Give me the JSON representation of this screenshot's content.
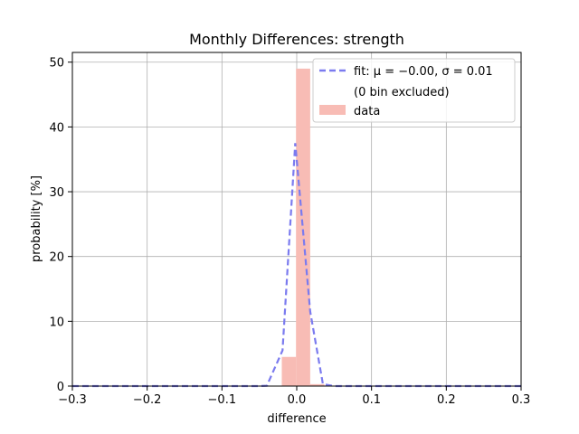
{
  "chart_data": {
    "type": "bar",
    "title": "Monthly Differences: strength",
    "xlabel": "difference",
    "ylabel": "probability [%]",
    "xlim": [
      -0.3,
      0.3
    ],
    "ylim": [
      0,
      51.5
    ],
    "grid": true,
    "x_ticks": [
      -0.3,
      -0.2,
      -0.1,
      0.0,
      0.1,
      0.2,
      0.3
    ],
    "x_tick_labels": [
      "−0.3",
      "−0.2",
      "−0.1",
      "0.0",
      "0.1",
      "0.2",
      "0.3"
    ],
    "y_ticks": [
      0,
      10,
      20,
      30,
      40,
      50
    ],
    "y_tick_labels": [
      "0",
      "10",
      "20",
      "30",
      "40",
      "50"
    ],
    "histogram": {
      "name": "data",
      "color": "#f8bcb5",
      "bins": [
        {
          "x0": -0.02,
          "x1": -0.001,
          "value": 4.5
        },
        {
          "x0": -0.001,
          "x1": 0.018,
          "value": 49.0
        },
        {
          "x0": 0.018,
          "x1": 0.037,
          "value": 0.3
        }
      ]
    },
    "fit": {
      "name": "fit",
      "color": "#7b7bef",
      "style": "dashed",
      "points": [
        [
          -0.3,
          0.0
        ],
        [
          -0.25,
          0.0
        ],
        [
          -0.2,
          0.0
        ],
        [
          -0.15,
          0.0
        ],
        [
          -0.1,
          0.0
        ],
        [
          -0.05,
          0.0
        ],
        [
          -0.04,
          0.05
        ],
        [
          -0.019,
          5.5
        ],
        [
          -0.002,
          37.5
        ],
        [
          0.018,
          11.5
        ],
        [
          0.035,
          0.3
        ],
        [
          0.05,
          0.0
        ],
        [
          0.1,
          0.0
        ],
        [
          0.15,
          0.0
        ],
        [
          0.2,
          0.0
        ],
        [
          0.25,
          0.0
        ],
        [
          0.3,
          0.0
        ]
      ]
    },
    "legend": {
      "placement": "upper-right",
      "fit_label_prefix": "fit",
      "fit_label_stats": ": μ = −0.00,  σ = 0.01",
      "excluded_note": "(0 bin excluded)",
      "data_label": "data"
    }
  }
}
